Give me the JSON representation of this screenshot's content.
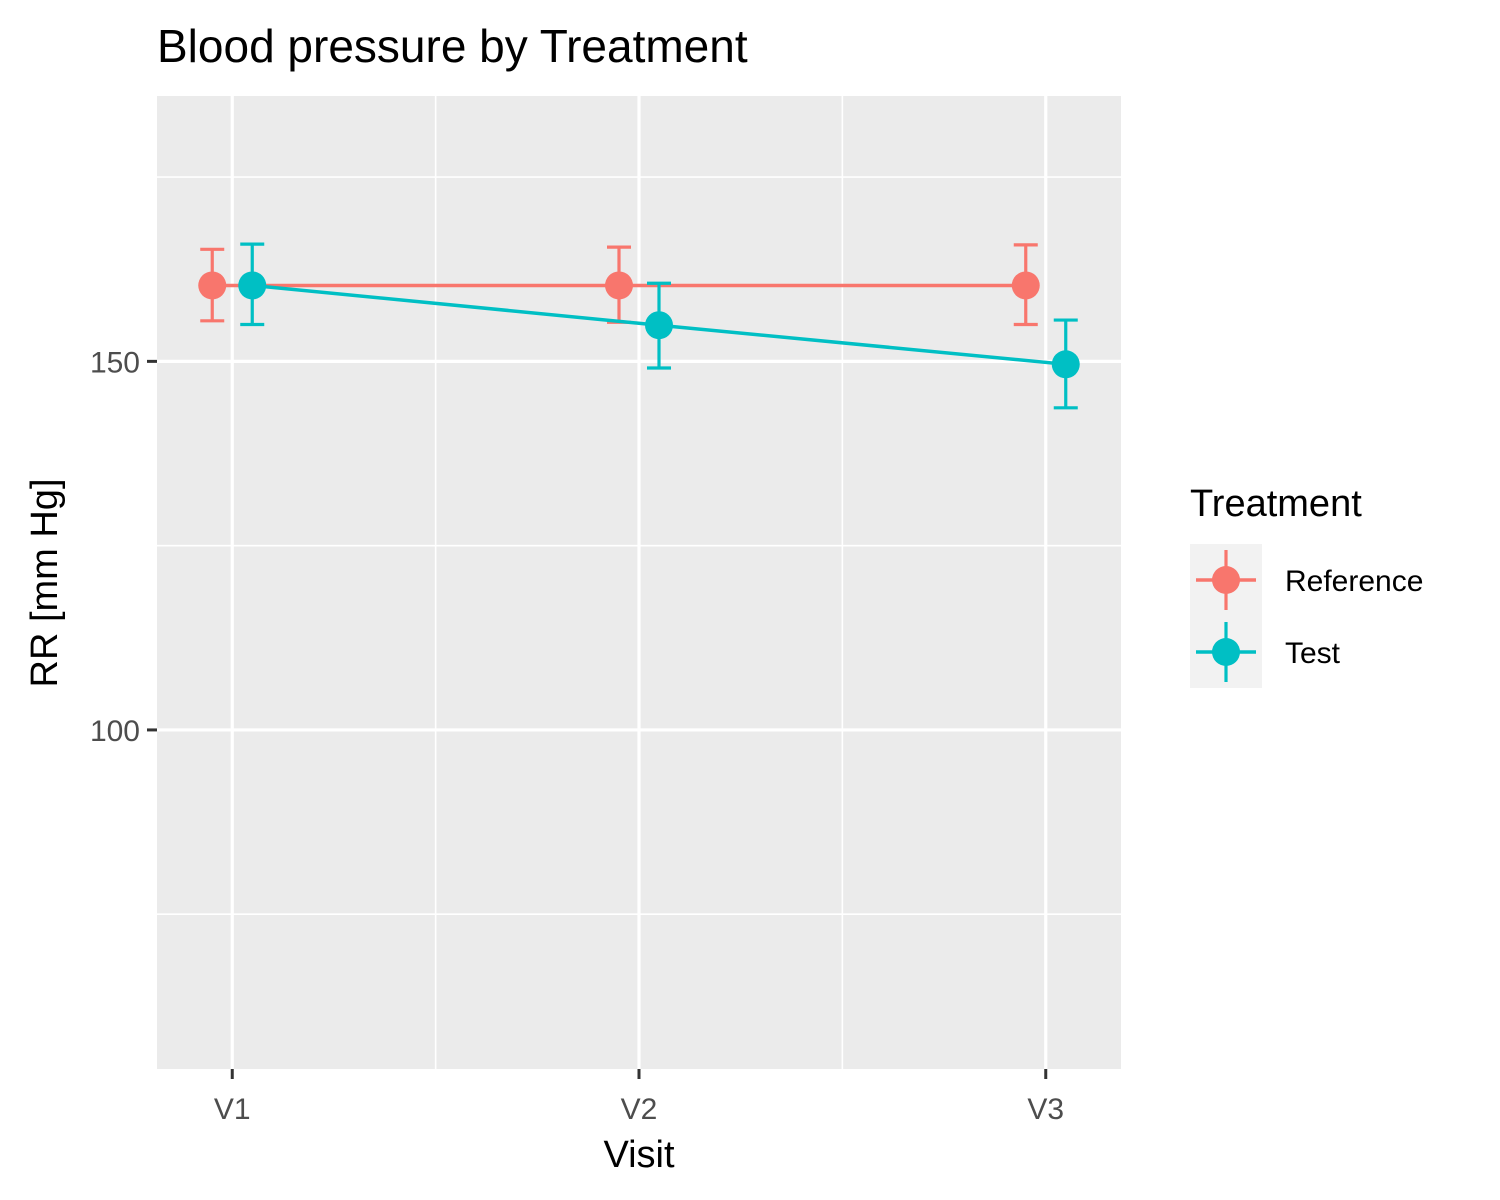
{
  "chart_data": {
    "type": "line",
    "title": "Blood pressure by Treatment",
    "xlabel": "Visit",
    "ylabel": "RR [mm Hg]",
    "categories": [
      "V1",
      "V2",
      "V3"
    ],
    "ylim": [
      54,
      186
    ],
    "yticks": [
      100,
      150
    ],
    "grid": true,
    "legend": {
      "title": "Treatment",
      "position": "right"
    },
    "series": [
      {
        "name": "Reference",
        "color": "#F8766D",
        "values": [
          160.3,
          160.3,
          160.3
        ],
        "lower": [
          155.5,
          155.3,
          155.0
        ],
        "upper": [
          165.2,
          165.5,
          165.8
        ]
      },
      {
        "name": "Test",
        "color": "#00BFC4",
        "values": [
          160.3,
          154.9,
          149.6
        ],
        "lower": [
          155.0,
          149.1,
          143.7
        ],
        "upper": [
          165.9,
          160.6,
          155.6
        ]
      }
    ]
  }
}
